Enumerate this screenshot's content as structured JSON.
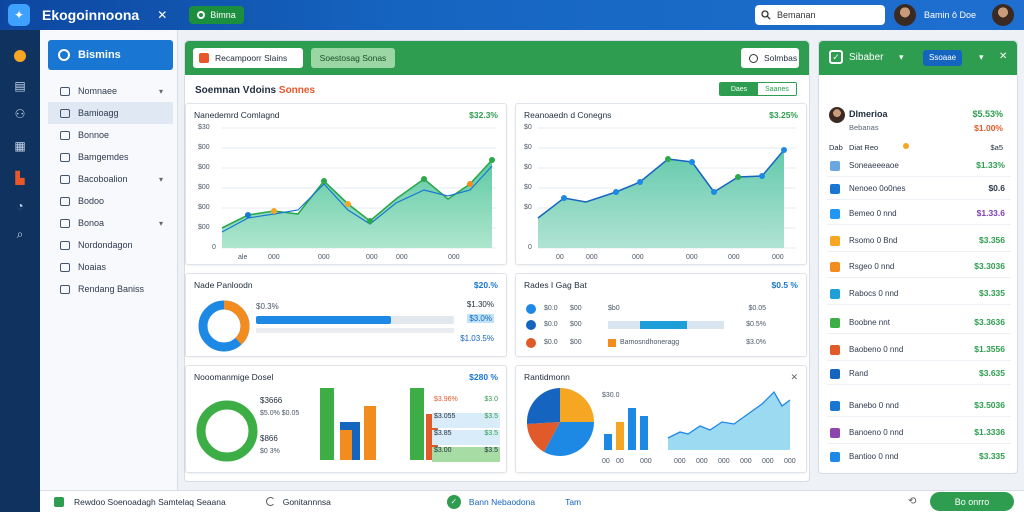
{
  "topbar": {
    "app_title": "Ekogoinnoona",
    "close_glyph": "✕",
    "pill_label": "Bimna",
    "search_placeholder": "Bemanan",
    "user_name": "Bamin  ô Doe"
  },
  "sidebar": {
    "header": "Bismins",
    "items": [
      {
        "label": "Nomnaee",
        "chevron": true
      },
      {
        "label": "Bamioagg",
        "chevron": false,
        "active": true
      },
      {
        "label": "Bonnoe",
        "chevron": false
      },
      {
        "label": "Bamgemdes",
        "chevron": false
      },
      {
        "label": "Bacoboalion",
        "chevron": true
      },
      {
        "label": "Bodoo",
        "chevron": false
      },
      {
        "label": "Bonoa",
        "chevron": true
      },
      {
        "label": "Nordondagon",
        "chevron": false
      },
      {
        "label": "Noaias",
        "chevron": false
      },
      {
        "label": "Rendang Baniss",
        "chevron": false
      }
    ]
  },
  "main": {
    "tab1": "Recampoorr Slains",
    "tab2": "Soestosag Sonas",
    "button": "Solmbas",
    "subtitle_a": "Soemnan Vdoins",
    "subtitle_b": "Sonnes",
    "seg_left": "Daes",
    "seg_right": "Saanes"
  },
  "cards": {
    "c1": {
      "title": "Nanedemrd Comlagnd",
      "value": "$32.3%",
      "ylabels": [
        "$30",
        "$00",
        "$00",
        "$00",
        "$00",
        "$00",
        "0"
      ],
      "xlabels": [
        "ale",
        "000",
        "000",
        "000",
        "000",
        "000"
      ]
    },
    "c2": {
      "title": "Reanoaedn d Conegns",
      "value": "$3.25%",
      "ylabels": [
        "$0",
        "$0",
        "$0",
        "$0",
        "$0",
        "0"
      ],
      "xlabels": [
        "00",
        "000",
        "000",
        "000",
        "000",
        "000"
      ]
    },
    "c3": {
      "title": "Nade Panloodn",
      "value": "$20.%",
      "row_a": "$0.3%",
      "row_a_val": "$1.30%",
      "row_b_val": "$3.0%",
      "row_c_val": "$1.03.5%"
    },
    "c4": {
      "title": "Rades I Gag Bat",
      "value": "$0.5 %",
      "rows": [
        {
          "a": "$0.0",
          "b": "$00",
          "c": "$b0",
          "v": "$0.05"
        },
        {
          "a": "$0.0",
          "b": "$00",
          "c": "",
          "v": "$0.5%"
        },
        {
          "a": "$0.0",
          "b": "$00",
          "c": "Bamosndhoneragg",
          "v": "$3.0%"
        }
      ]
    },
    "c5": {
      "title": "Nooomanmige Dosel",
      "value": "$280 %",
      "big_a": "$3666",
      "big_a_sub": "$5.0% $0.05",
      "big_b": "$866",
      "big_b_sub": "$0 3%",
      "vals": [
        {
          "a": "$3.96%",
          "b": "$3.0"
        },
        {
          "a": "$3.055",
          "b": "$3.5"
        },
        {
          "a": "$3.85",
          "b": "$3.5"
        },
        {
          "a": "$3.00",
          "b": "$3.5"
        }
      ]
    },
    "c6": {
      "title": "Rantidmonn",
      "value": "",
      "pie_label": "$30.0",
      "xlabels": [
        "00",
        "00",
        "000",
        "000",
        "000",
        "000",
        "000",
        "000",
        "000"
      ]
    }
  },
  "right": {
    "header": "Sibaber",
    "chip": "Ssoaae",
    "person_name": "Dlmerioa",
    "person_sub": "Bebanas",
    "person_val": "$5.53%",
    "person_val2": "$1.00%",
    "filter_a": "Dab",
    "filter_b": "Diat  Reo",
    "col_head": "$a5",
    "rows": [
      {
        "label": "Soneaeeeaoe",
        "value": "$1.33%",
        "color": "#6aa6e0",
        "val_color": "#2e9d4f"
      },
      {
        "label": "Nenoeo 0o0nes",
        "value": "$0.6",
        "color": "#1976d2",
        "val_color": "#2e3b4e"
      },
      {
        "label": "Bemeo 0 nnd",
        "value": "$1.33.6",
        "color": "#2196f3",
        "val_color": "#7b3fb0"
      },
      {
        "label": "Rsomo 0 Bnd",
        "value": "$3.356",
        "color": "#f5a623",
        "val_color": "#2e9d4f"
      },
      {
        "label": "Rsgeo 0 nnd",
        "value": "$3.3036",
        "color": "#f28c1e",
        "val_color": "#2e9d4f"
      },
      {
        "label": "Rabocs 0 nnd",
        "value": "$3.335",
        "color": "#1e9fd8",
        "val_color": "#2e9d4f"
      },
      {
        "label": "Boobne nnt",
        "value": "$3.3636",
        "color": "#3dae46",
        "val_color": "#2e9d4f"
      },
      {
        "label": "Baobeno 0 nnd",
        "value": "$1.3556",
        "color": "#e05a2a",
        "val_color": "#2e9d4f"
      },
      {
        "label": "Rand",
        "value": "$3.635",
        "color": "#1565c0",
        "val_color": "#2e9d4f"
      },
      {
        "label": "Banebo 0 nnd",
        "value": "$3.5036",
        "color": "#1976d2",
        "val_color": "#2e9d4f"
      },
      {
        "label": "Banoeno 0 nnd",
        "value": "$1.3336",
        "color": "#8e44ad",
        "val_color": "#2e9d4f"
      },
      {
        "label": "Bantioo 0 nnd",
        "value": "$3.335",
        "color": "#1e88e5",
        "val_color": "#2e9d4f"
      }
    ]
  },
  "footer": {
    "item1": "Rewdoo Soenoadagh Samtelaq Seaana",
    "item2": "Gonitannnsa",
    "item3": "Bann Nebaodona",
    "item4": "Tam",
    "button": "Bo onrro"
  },
  "icons": {
    "logo": "bird-logo-icon",
    "search": "search-icon",
    "check": "check-icon",
    "chevron": "chevron-down-icon"
  },
  "colors": {
    "primary": "#1565c0",
    "green": "#2e9d4f",
    "teal": "#5cc8a8",
    "orange": "#f28c1e"
  }
}
